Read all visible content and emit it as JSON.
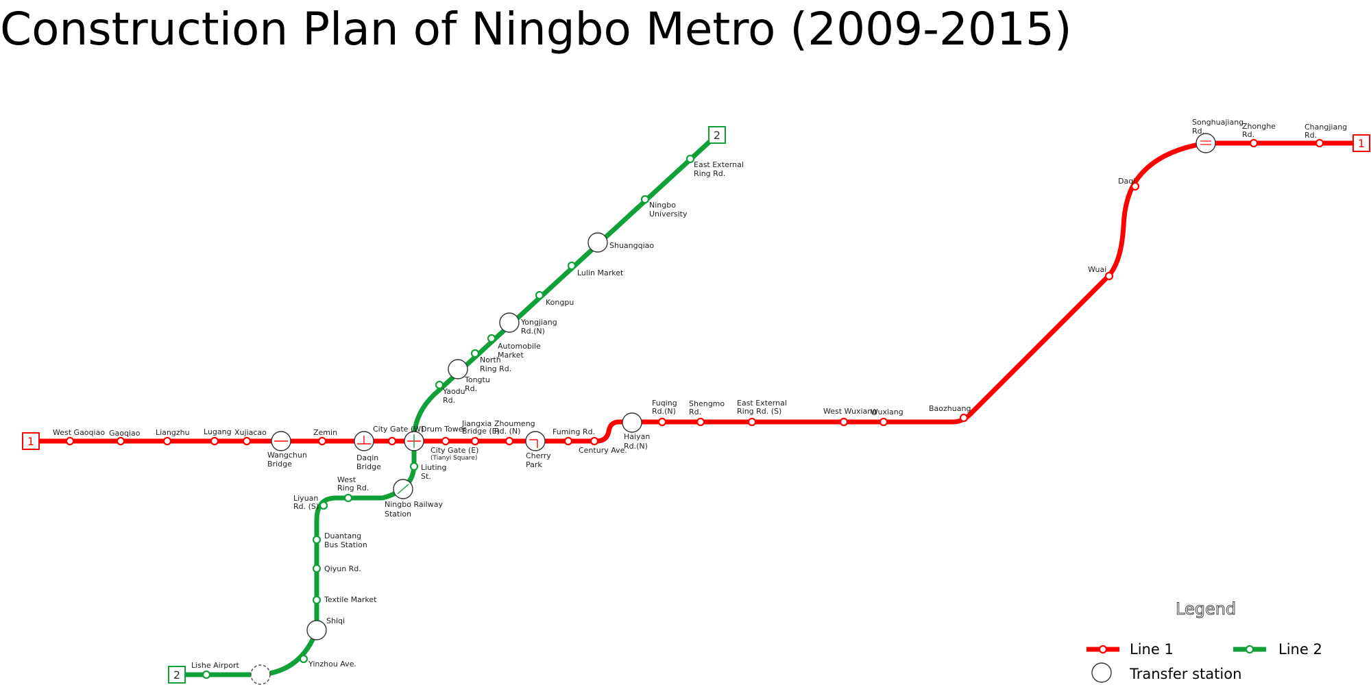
{
  "title": "Construction Plan of Ningbo Metro (2009-2015)",
  "colors": {
    "line1": "#ff0000",
    "line2": "#10a038",
    "station_fill": "#ffffff",
    "outline": "#333333"
  },
  "lines": {
    "line1": {
      "number": "1"
    },
    "line2": {
      "number": "2"
    }
  },
  "stations": [
    {
      "id": "west-gaoqiao",
      "label": [
        "West Gaoqiao"
      ]
    },
    {
      "id": "gaoqiao",
      "label": [
        "Gaoqiao"
      ]
    },
    {
      "id": "liangzhu",
      "label": [
        "Liangzhu"
      ]
    },
    {
      "id": "lugang",
      "label": [
        "Lugang"
      ]
    },
    {
      "id": "xujiacao",
      "label": [
        "Xujiacao"
      ]
    },
    {
      "id": "wangchun-bridge",
      "label": [
        "Wangchun",
        "Bridge"
      ]
    },
    {
      "id": "zemin",
      "label": [
        "Zemin"
      ]
    },
    {
      "id": "daqin-bridge",
      "label": [
        "Daqin",
        "Bridge"
      ]
    },
    {
      "id": "city-gate-w",
      "label": [
        "City Gate (W)"
      ]
    },
    {
      "id": "drum-tower",
      "label": [
        "Drum Tower"
      ]
    },
    {
      "id": "city-gate-e",
      "label": [
        "City Gate (E)"
      ],
      "sublabel": "(Tianyi Square)"
    },
    {
      "id": "jiangxia-bridge-e",
      "label": [
        "Jiangxia",
        "Bridge (E)"
      ]
    },
    {
      "id": "zhoumeng-rd-n",
      "label": [
        "Zhoumeng",
        "Rd. (N)"
      ]
    },
    {
      "id": "cherry-park",
      "label": [
        "Cherry",
        "Park"
      ]
    },
    {
      "id": "fuming-rd",
      "label": [
        "Fuming Rd."
      ]
    },
    {
      "id": "century-ave",
      "label": [
        "Century Ave."
      ]
    },
    {
      "id": "haiyan-rd-n",
      "label": [
        "Haiyan",
        "Rd.(N)"
      ]
    },
    {
      "id": "fuqing-rd-n",
      "label": [
        "Fuqing",
        "Rd.(N)"
      ]
    },
    {
      "id": "shengmo-rd",
      "label": [
        "Shengmo",
        "Rd."
      ]
    },
    {
      "id": "east-external-ring-rd-s",
      "label": [
        "East External",
        "Ring Rd. (S)"
      ]
    },
    {
      "id": "west-wuxiang",
      "label": [
        "West Wuxiang"
      ]
    },
    {
      "id": "wuxiang",
      "label": [
        "Wuxiang"
      ]
    },
    {
      "id": "baozhuang",
      "label": [
        "Baozhuang"
      ]
    },
    {
      "id": "wuai",
      "label": [
        "Wuai"
      ]
    },
    {
      "id": "daqi",
      "label": [
        "Daqi"
      ]
    },
    {
      "id": "songhuajiang-rd",
      "label": [
        "Songhuajiang",
        "Rd."
      ]
    },
    {
      "id": "zhonghe-rd",
      "label": [
        "Zhonghe",
        "Rd."
      ]
    },
    {
      "id": "changjiang-rd",
      "label": [
        "Changjiang",
        "Rd."
      ]
    },
    {
      "id": "east-external-ring-rd",
      "label": [
        "East External",
        "Ring Rd."
      ]
    },
    {
      "id": "ningbo-university",
      "label": [
        "Ningbo",
        "University"
      ]
    },
    {
      "id": "shuangqiao",
      "label": [
        "Shuangqiao"
      ]
    },
    {
      "id": "lulin-market",
      "label": [
        "Lulin Market"
      ]
    },
    {
      "id": "kongpu",
      "label": [
        "Kongpu"
      ]
    },
    {
      "id": "yongjiang-rd-n",
      "label": [
        "Yongjiang",
        "Rd.(N)"
      ]
    },
    {
      "id": "automobile-market",
      "label": [
        "Automobile",
        "Market"
      ]
    },
    {
      "id": "north-ring-rd",
      "label": [
        "North",
        "Ring Rd."
      ]
    },
    {
      "id": "tongtu-rd",
      "label": [
        "Tongtu",
        "Rd."
      ]
    },
    {
      "id": "yaodu-rd",
      "label": [
        "Yaodu",
        "Rd."
      ]
    },
    {
      "id": "liuting-st",
      "label": [
        "Liuting",
        "St."
      ]
    },
    {
      "id": "ningbo-railway-station",
      "label": [
        "Ningbo Railway",
        "Station"
      ]
    },
    {
      "id": "west-ring-rd",
      "label": [
        "West",
        "Ring Rd."
      ]
    },
    {
      "id": "liyuan-rd-s",
      "label": [
        "Liyuan",
        "Rd. (S)"
      ]
    },
    {
      "id": "duantang-bus-station",
      "label": [
        "Duantang",
        "Bus Station"
      ]
    },
    {
      "id": "qiyun-rd",
      "label": [
        "Qiyun Rd."
      ]
    },
    {
      "id": "textile-market",
      "label": [
        "Textile Market"
      ]
    },
    {
      "id": "shiqi",
      "label": [
        "Shiqi"
      ]
    },
    {
      "id": "yinzhou-ave",
      "label": [
        "Yinzhou Ave."
      ]
    },
    {
      "id": "lishe-airport",
      "label": [
        "Lishe Airport"
      ]
    }
  ],
  "legend": {
    "title": "Legend",
    "items": [
      {
        "label": "Line 1",
        "symbol": "line1"
      },
      {
        "label": "Line 2",
        "symbol": "line2"
      },
      {
        "label": "Transfer station",
        "symbol": "transfer"
      }
    ]
  }
}
